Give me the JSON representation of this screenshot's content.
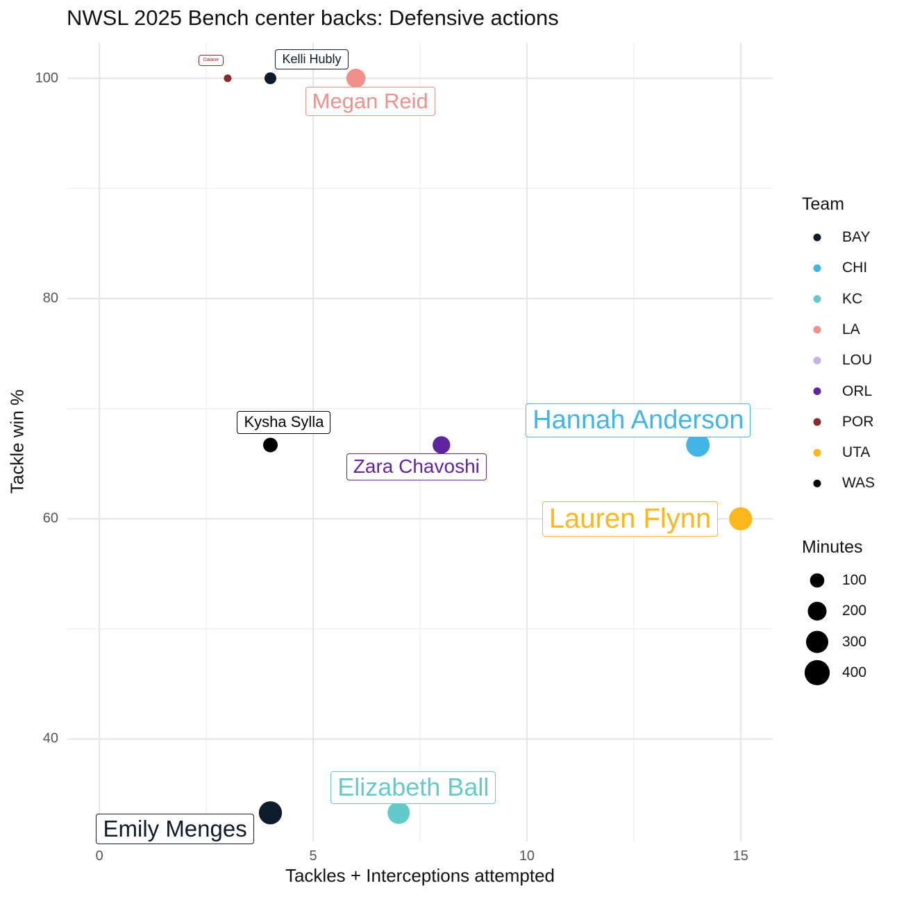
{
  "chart_data": {
    "type": "scatter",
    "title": "NWSL 2025 Bench center backs: Defensive actions",
    "xlabel": "Tackles + Interceptions attempted",
    "ylabel": "Tackle win %",
    "xlim": [
      -0.75,
      15.75
    ],
    "ylim": [
      30.7,
      103.2
    ],
    "x_ticks": [
      0,
      5,
      10,
      15
    ],
    "y_ticks": [
      40,
      60,
      80,
      100
    ],
    "grid": true,
    "points": [
      {
        "player": "Daiane",
        "team": "POR",
        "x": 3,
        "y": 100.0,
        "minutes": 15
      },
      {
        "player": "Kelli Hubly",
        "team": "BAY",
        "x": 4,
        "y": 100.0,
        "minutes": 60
      },
      {
        "player": "Megan Reid",
        "team": "LA",
        "x": 6,
        "y": 100.0,
        "minutes": 210
      },
      {
        "player": "Kysha Sylla",
        "team": "WAS",
        "x": 4,
        "y": 66.7,
        "minutes": 105
      },
      {
        "player": "Zara Chavoshi",
        "team": "ORL",
        "x": 8,
        "y": 66.7,
        "minutes": 170
      },
      {
        "player": "Hannah Anderson",
        "team": "CHI",
        "x": 14,
        "y": 66.7,
        "minutes": 340
      },
      {
        "player": "Lauren Flynn",
        "team": "UTA",
        "x": 15,
        "y": 60.0,
        "minutes": 330
      },
      {
        "player": "Elizabeth Ball",
        "team": "KC",
        "x": 7,
        "y": 33.3,
        "minutes": 300
      },
      {
        "player": "Emily Menges",
        "team": "BAY",
        "x": 4,
        "y": 33.3,
        "minutes": 330
      }
    ],
    "legend_team": {
      "title": "Team",
      "entries": [
        {
          "label": "BAY",
          "color": "#0d1b2a"
        },
        {
          "label": "CHI",
          "color": "#41b6e6"
        },
        {
          "label": "KC",
          "color": "#62cbc9"
        },
        {
          "label": "LA",
          "color": "#f0908a"
        },
        {
          "label": "LOU",
          "color": "#c5b4e3"
        },
        {
          "label": "ORL",
          "color": "#5f249f"
        },
        {
          "label": "POR",
          "color": "#8b2a2a"
        },
        {
          "label": "UTA",
          "color": "#fdb71a"
        },
        {
          "label": "WAS",
          "color": "#000000"
        }
      ]
    },
    "legend_minutes": {
      "title": "Minutes",
      "entries": [
        {
          "label": "100",
          "value": 100
        },
        {
          "label": "200",
          "value": 200
        },
        {
          "label": "300",
          "value": 300
        },
        {
          "label": "400",
          "value": 400
        }
      ]
    }
  }
}
